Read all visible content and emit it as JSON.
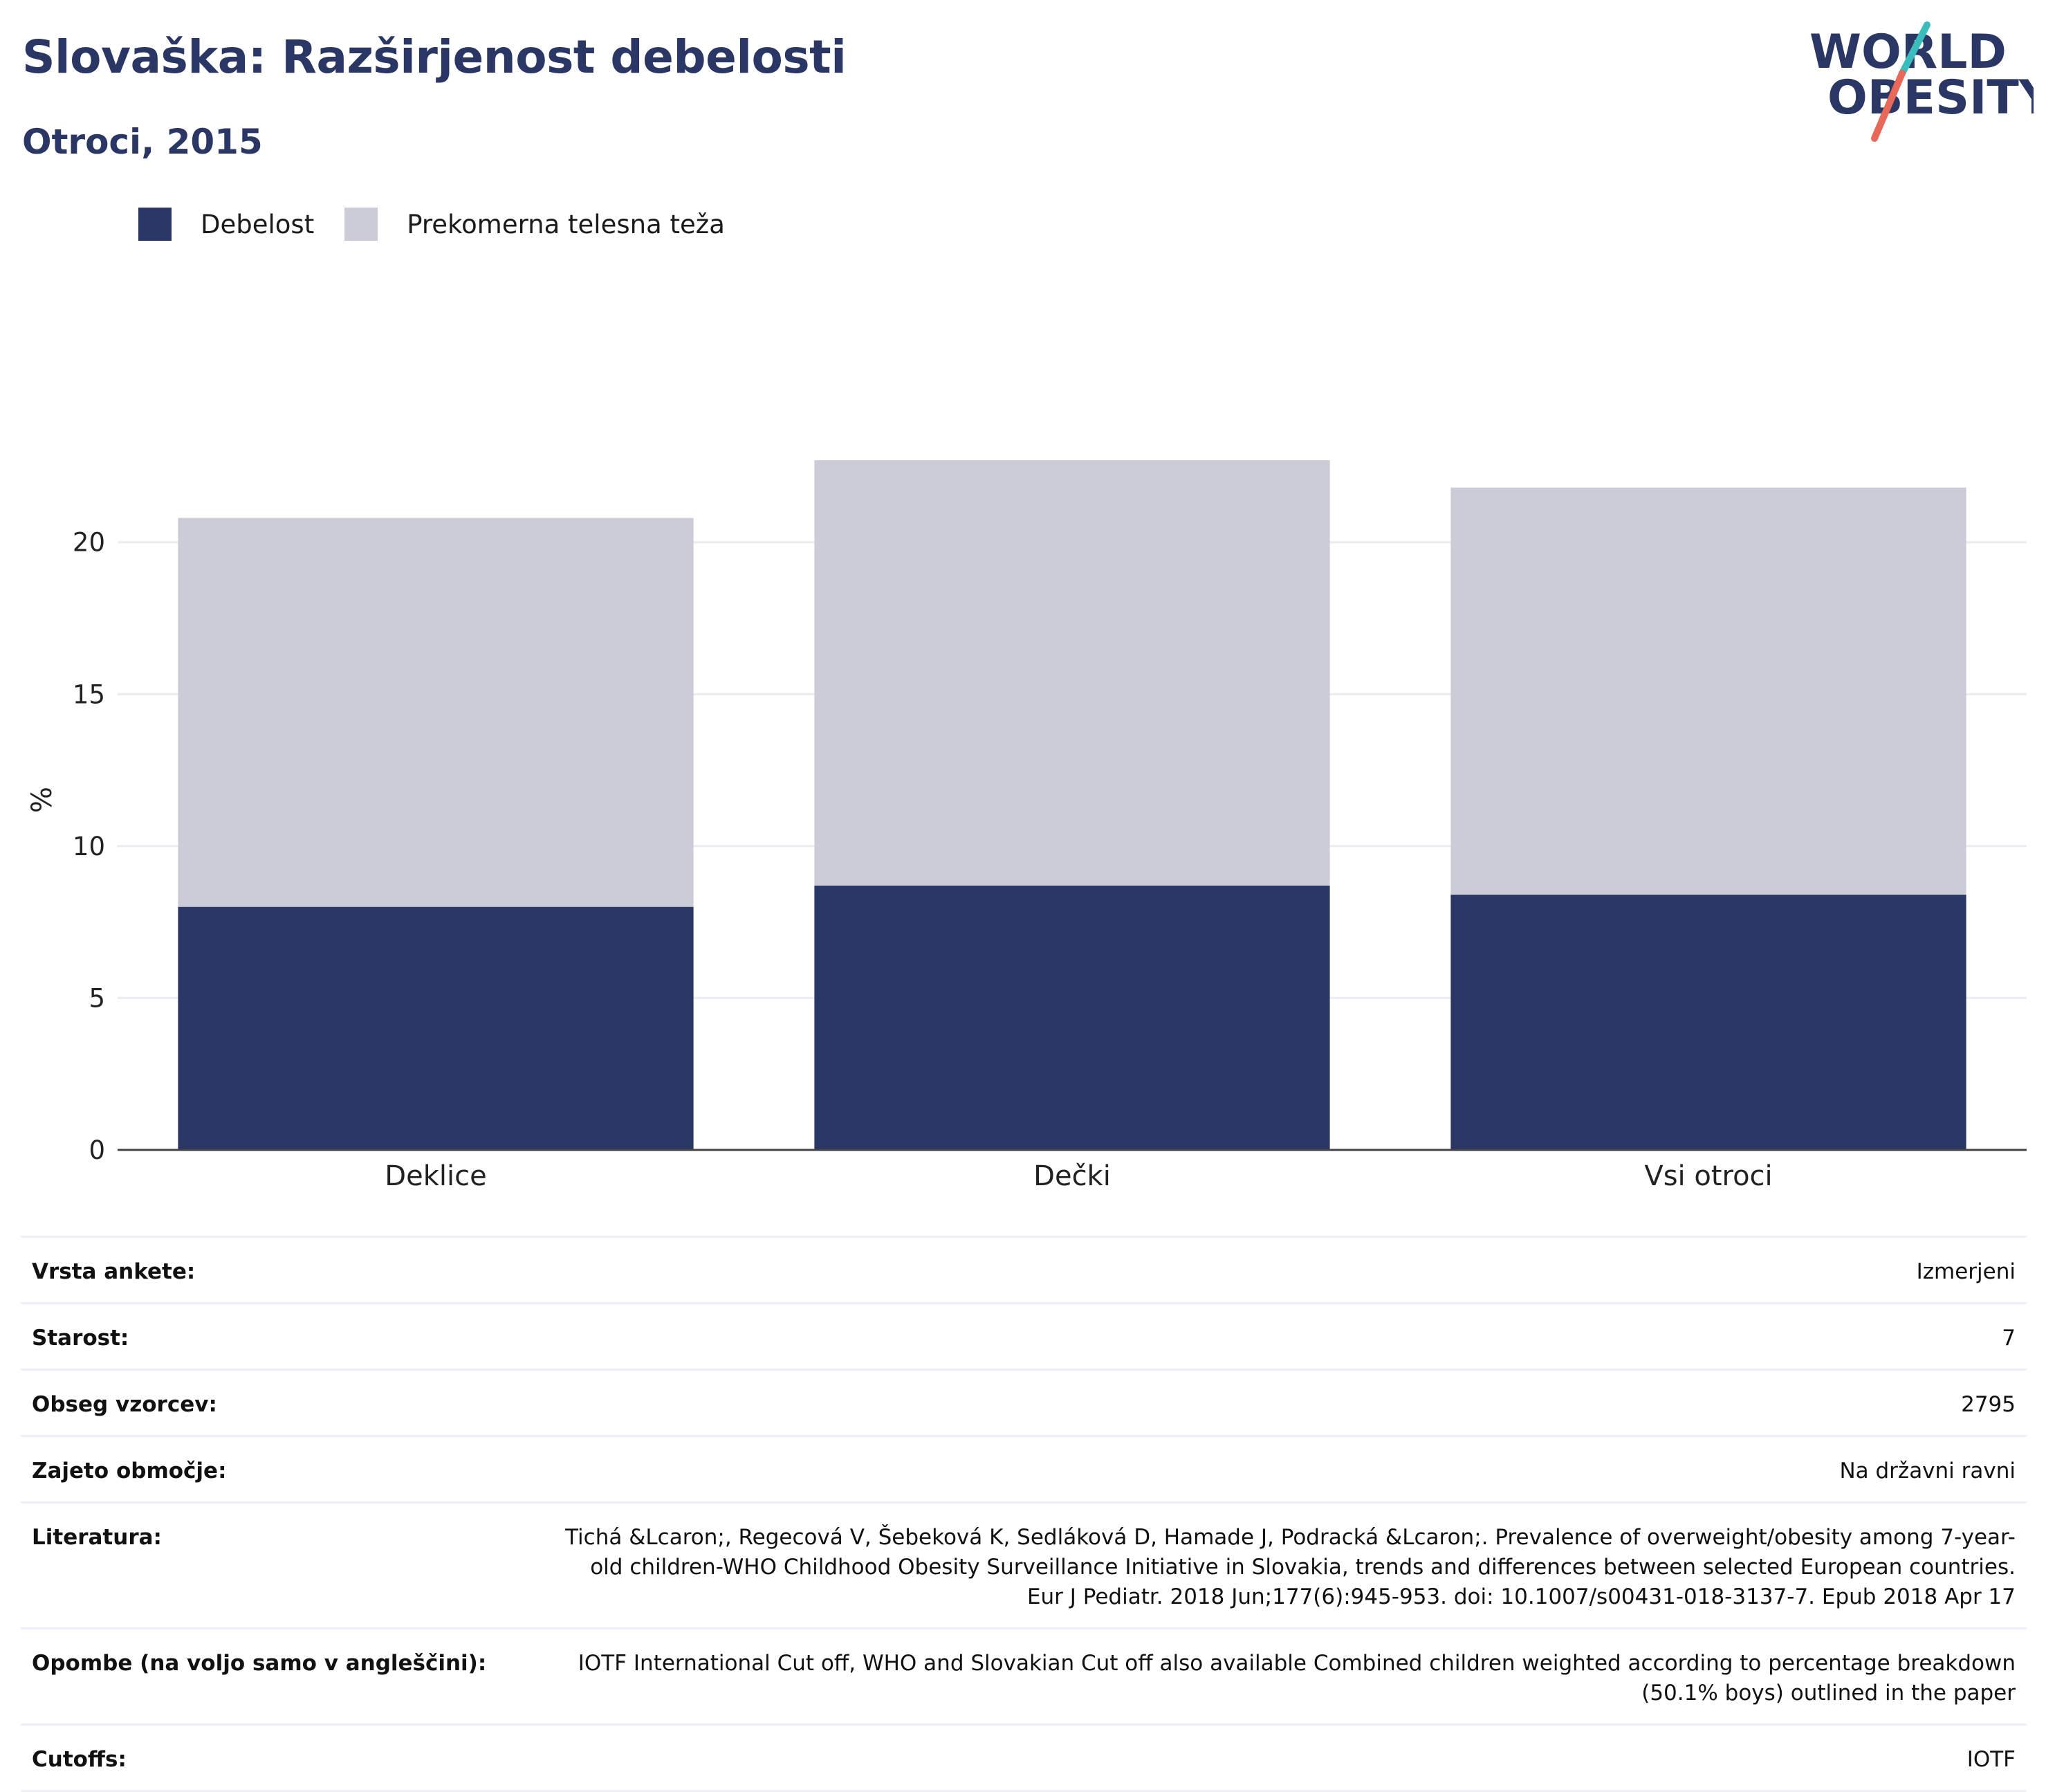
{
  "header": {
    "title": "Slovaška: Razširjenost debelosti",
    "subtitle": "Otroci, 2015"
  },
  "logo": {
    "line1": "WORLD",
    "line2": "OBESITY"
  },
  "colors": {
    "obesity": "#2a3663",
    "overweight": "#cbccd8",
    "title": "#2a3663",
    "logo_teal": "#3bbcbc",
    "logo_red": "#e8685a"
  },
  "legend": [
    {
      "label": "Debelost",
      "color": "#2a3663"
    },
    {
      "label": "Prekomerna telesna teža",
      "color": "#cbccd8"
    }
  ],
  "chart_data": {
    "type": "bar",
    "stacked": true,
    "categories": [
      "Deklice",
      "Dečki",
      "Vsi otroci"
    ],
    "series": [
      {
        "name": "Debelost",
        "values": [
          8.0,
          8.7,
          8.4
        ]
      },
      {
        "name": "Prekomerna telesna teža",
        "values": [
          12.8,
          14.0,
          13.4
        ]
      }
    ],
    "ylabel": "%",
    "yticks": [
      0,
      5,
      10,
      15,
      20
    ],
    "ylim": [
      0,
      23.5
    ],
    "grid": true,
    "legend_position": "top-left"
  },
  "info": [
    {
      "key": "Vrsta ankete:",
      "value": "Izmerjeni"
    },
    {
      "key": "Starost:",
      "value": "7"
    },
    {
      "key": "Obseg vzorcev:",
      "value": "2795"
    },
    {
      "key": "Zajeto območje:",
      "value": "Na državni ravni"
    },
    {
      "key": "Literatura:",
      "value": "Tichá &Lcaron;, Regecová V, Šebeková K, Sedláková D, Hamade J, Podracká &Lcaron;. Prevalence of overweight/obesity among 7-year-old children-WHO Childhood Obesity Surveillance Initiative in Slovakia, trends and differences between selected European countries. Eur J Pediatr. 2018 Jun;177(6):945-953. doi: 10.1007/s00431-018-3137-7. Epub 2018 Apr 17"
    },
    {
      "key": "Opombe (na voljo samo v angleščini):",
      "value": "IOTF International Cut off, WHO and Slovakian Cut off also available Combined children weighted according to percentage breakdown (50.1% boys) outlined in the paper"
    },
    {
      "key": "Cutoffs:",
      "value": "IOTF"
    }
  ]
}
